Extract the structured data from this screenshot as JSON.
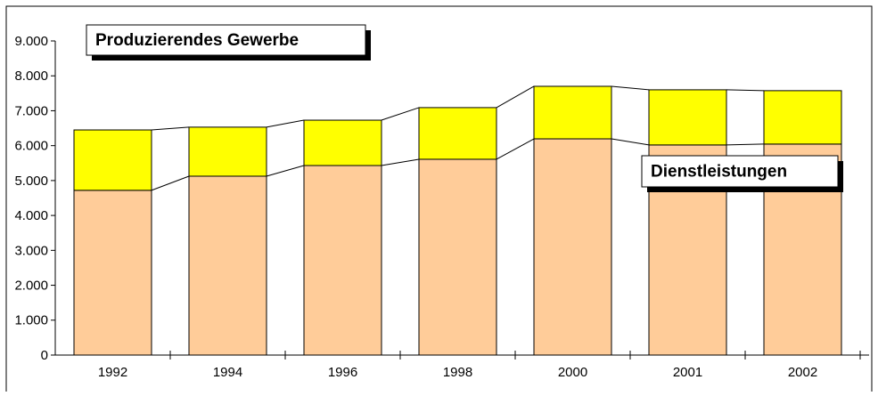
{
  "chart_data": {
    "type": "stacked-bar",
    "categories": [
      "1992",
      "1994",
      "1996",
      "1998",
      "2000",
      "2001",
      "2002"
    ],
    "series": [
      {
        "name": "Dienstleistungen",
        "color": "#ffcc99",
        "values": [
          4720,
          5125,
          5430,
          5610,
          6195,
          6020,
          6045
        ]
      },
      {
        "name": "Produzierendes Gewerbe",
        "color": "#ffff00",
        "values": [
          1730,
          1405,
          1300,
          1480,
          1505,
          1580,
          1530
        ]
      }
    ],
    "ylim": [
      0,
      9000
    ],
    "yticks": [
      0,
      {
        "value": 1000,
        "label": "1.000"
      },
      {
        "value": 2000,
        "label": "2.000"
      },
      {
        "value": 3000,
        "label": "3.000"
      },
      {
        "value": 4000,
        "label": "4.000"
      },
      {
        "value": 5000,
        "label": "5.000"
      },
      {
        "value": 6000,
        "label": "6.000"
      },
      {
        "value": 7000,
        "label": "7.000"
      },
      {
        "value": 8000,
        "label": "8.000"
      },
      {
        "value": 9000,
        "label": "9.000"
      }
    ]
  }
}
